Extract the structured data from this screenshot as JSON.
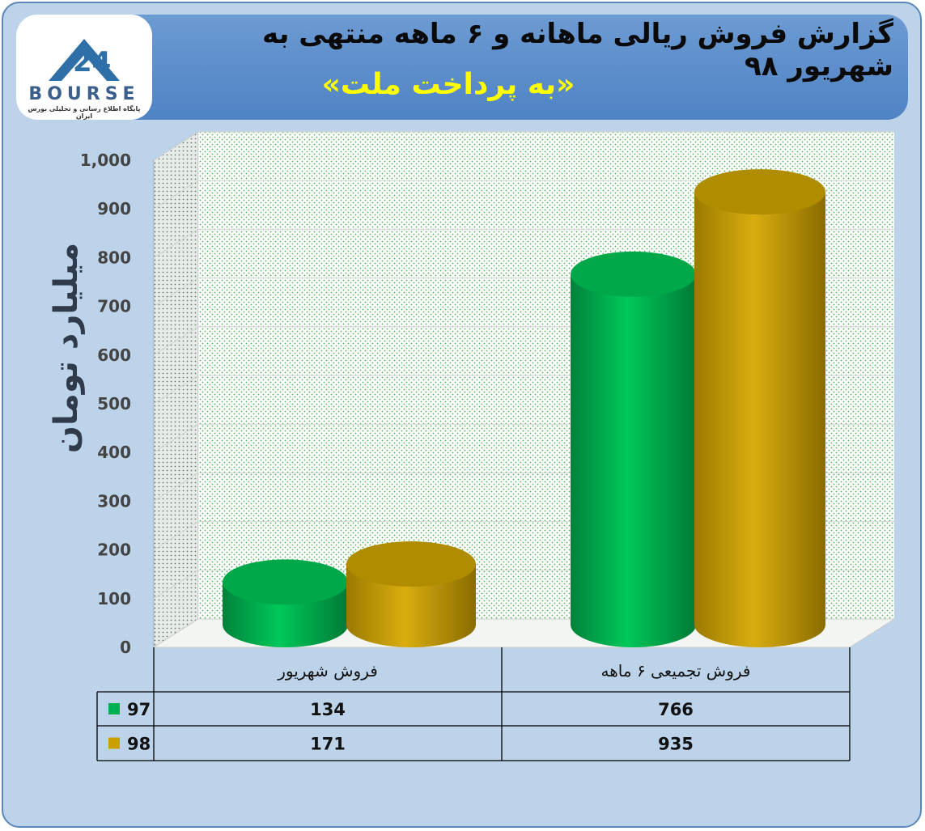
{
  "header": {
    "title": "گزارش فروش ریالی ماهانه و ۶ ماهه منتهی به شهریور ۹۸",
    "subtitle": "«به پرداخت ملت»",
    "logo_text": "BOURSE",
    "logo_number": "24",
    "logo_sub": "پایگاه اطلاع رسانی و تحلیلی بورس ایران"
  },
  "colors": {
    "series_97": "#00b050",
    "series_98": "#c9a000",
    "background": "#bcd3ea",
    "header": "#5b8fce",
    "title_yellow": "#ffff00"
  },
  "chart_data": {
    "type": "bar",
    "style": "3d-cylinder",
    "ylabel": "میلیارد تومان",
    "ylim": [
      0,
      1000
    ],
    "yticks": [
      "0",
      "100",
      "200",
      "300",
      "400",
      "500",
      "600",
      "700",
      "800",
      "900",
      "1,000"
    ],
    "categories": [
      "فروش شهریور",
      "فروش تجمیعی ۶ ماهه"
    ],
    "series": [
      {
        "name": "97",
        "values": [
          134,
          766
        ]
      },
      {
        "name": "98",
        "values": [
          171,
          935
        ]
      }
    ],
    "table": {
      "rows": [
        {
          "label": "97",
          "cells": [
            "134",
            "766"
          ]
        },
        {
          "label": "98",
          "cells": [
            "171",
            "935"
          ]
        }
      ]
    },
    "grid": true
  }
}
